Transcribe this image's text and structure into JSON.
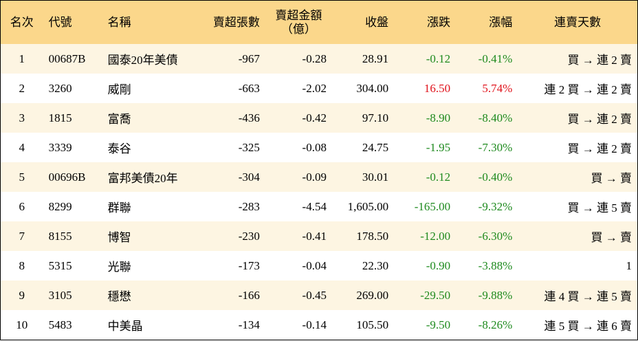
{
  "table": {
    "header": [
      "名次",
      "代號",
      "名稱",
      "賣超張數",
      "賣超金額\n（億）",
      "收盤",
      "漲跌",
      "漲幅",
      "連賣天數"
    ],
    "rows": [
      [
        "1",
        "00687B",
        "國泰20年美債",
        "-967",
        "-0.28",
        "28.91",
        "-0.12",
        "-0.41%",
        "買 → 連 2 賣"
      ],
      [
        "2",
        "3260",
        "威剛",
        "-663",
        "-2.02",
        "304.00",
        "16.50",
        "5.74%",
        "連 2 買 → 連 2 賣"
      ],
      [
        "3",
        "1815",
        "富喬",
        "-436",
        "-0.42",
        "97.10",
        "-8.90",
        "-8.40%",
        "買 → 連 2 賣"
      ],
      [
        "4",
        "3339",
        "泰谷",
        "-325",
        "-0.08",
        "24.75",
        "-1.95",
        "-7.30%",
        "買 → 連 2 賣"
      ],
      [
        "5",
        "00696B",
        "富邦美債20年",
        "-304",
        "-0.09",
        "30.01",
        "-0.12",
        "-0.40%",
        "買 → 賣"
      ],
      [
        "6",
        "8299",
        "群聯",
        "-283",
        "-4.54",
        "1,605.00",
        "-165.00",
        "-9.32%",
        "買 → 連 5 賣"
      ],
      [
        "7",
        "8155",
        "博智",
        "-230",
        "-0.41",
        "178.50",
        "-12.00",
        "-6.30%",
        "買 → 賣"
      ],
      [
        "8",
        "5315",
        "光聯",
        "-173",
        "-0.04",
        "22.30",
        "-0.90",
        "-3.88%",
        "1"
      ],
      [
        "9",
        "3105",
        "穩懋",
        "-166",
        "-0.45",
        "269.00",
        "-29.50",
        "-9.88%",
        "連 4 買 → 連 5 賣"
      ],
      [
        "10",
        "5483",
        "中美晶",
        "-134",
        "-0.14",
        "105.50",
        "-9.50",
        "-8.26%",
        "連 5 買 → 連 6 賣"
      ]
    ]
  }
}
